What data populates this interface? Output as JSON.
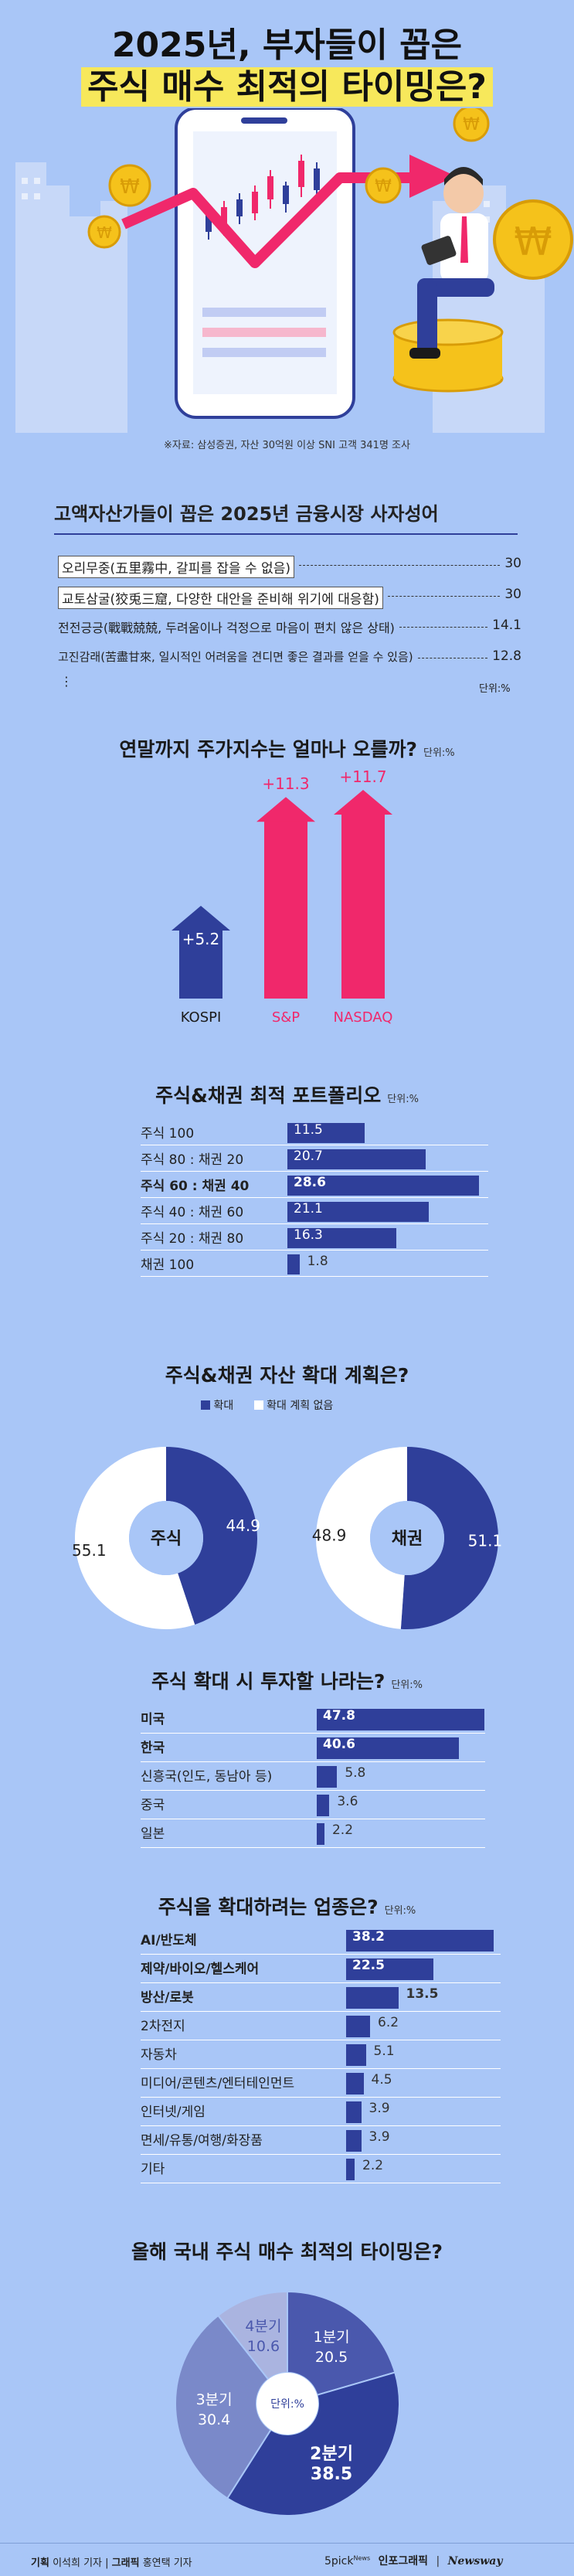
{
  "header": {
    "line1": "2025년, 부자들이 꼽은",
    "line2": "주식 매수 최적의 타이밍은?",
    "source": "※자료: 삼성증권, 자산 30억원 이상 SNI 고객 341명 조사"
  },
  "idioms": {
    "title": "고액자산가들이 꼽은 2025년 금융시장 사자성어",
    "unit": "단위:%",
    "ellipsis": "⋮",
    "items": [
      {
        "text": "오리무중(五里霧中, 갈피를 잡을 수 없음)",
        "value": "30",
        "boxed": true
      },
      {
        "text": "교토삼굴(狡兎三窟, 다양한 대안을 준비해 위기에 대응함)",
        "value": "30",
        "boxed": true
      },
      {
        "text": "전전긍긍(戰戰兢兢, 두려움이나 걱정으로 마음이 편치 않은 상태)",
        "value": "14.1",
        "boxed": false
      },
      {
        "text": "고진감래(苦盡甘來, 일시적인 어려움을 견디면 좋은 결과를 얻을 수 있음)",
        "value": "12.8",
        "boxed": false
      }
    ]
  },
  "chart_data": [
    {
      "type": "bar",
      "title": "연말까지 주가지수는 얼마나 오를까?",
      "unit": "단위:%",
      "categories": [
        "KOSPI",
        "S&P",
        "NASDAQ"
      ],
      "values": [
        5.2,
        11.3,
        11.7
      ],
      "labels": [
        "+5.2",
        "+11.3",
        "+11.7"
      ],
      "colors": [
        "#2f3f9a",
        "#f0286b",
        "#f0286b"
      ]
    },
    {
      "type": "bar",
      "orientation": "horizontal",
      "title": "주식&채권 최적 포트폴리오",
      "unit": "단위:%",
      "categories": [
        "주식 100",
        "주식 80 : 채권 20",
        "주식 60 : 채권 40",
        "주식 40 : 채권 60",
        "주식 20 : 채권 80",
        "채권 100"
      ],
      "values": [
        11.5,
        20.7,
        28.6,
        21.1,
        16.3,
        1.8
      ],
      "bold_index": 2,
      "xlim": [
        0,
        30
      ]
    },
    {
      "type": "pie",
      "title": "주식&채권 자산 확대 계획은?",
      "legend": [
        "확대",
        "확대 계획 없음"
      ],
      "colors": [
        "#2f3f9a",
        "#ffffff"
      ],
      "donuts": [
        {
          "name": "주식",
          "values": [
            44.9,
            55.1
          ]
        },
        {
          "name": "채권",
          "values": [
            51.1,
            48.9
          ]
        }
      ]
    },
    {
      "type": "bar",
      "orientation": "horizontal",
      "title": "주식 확대 시 투자할 나라는?",
      "unit": "단위:%",
      "categories": [
        "미국",
        "한국",
        "신흥국(인도, 동남아 등)",
        "중국",
        "일본"
      ],
      "values": [
        47.8,
        40.6,
        5.8,
        3.6,
        2.2
      ],
      "bold_count": 2,
      "xlim": [
        0,
        48
      ]
    },
    {
      "type": "bar",
      "orientation": "horizontal",
      "title": "주식을 확대하려는 업종은?",
      "unit": "단위:%",
      "categories": [
        "AI/반도체",
        "제약/바이오/헬스케어",
        "방산/로봇",
        "2차전지",
        "자동차",
        "미디어/콘텐츠/엔터테인먼트",
        "인터넷/게임",
        "면세/유통/여행/화장품",
        "기타"
      ],
      "values": [
        38.2,
        22.5,
        13.5,
        6.2,
        5.1,
        4.5,
        3.9,
        3.9,
        2.2
      ],
      "bold_count": 3,
      "xlim": [
        0,
        40
      ]
    },
    {
      "type": "pie",
      "title": "올해 국내 주식 매수 최적의 타이밍은?",
      "center_label": "단위:%",
      "categories": [
        "1분기",
        "2분기",
        "3분기",
        "4분기"
      ],
      "values": [
        20.5,
        38.5,
        30.4,
        10.6
      ],
      "colors": [
        "#4a58ad",
        "#2f3f9a",
        "#7a89c9",
        "#aab4e0"
      ]
    }
  ],
  "footer": {
    "credit_label1": "기획",
    "credit_name1": "이석희 기자",
    "credit_sep": "|",
    "credit_label2": "그래픽",
    "credit_name2": "홍연택 기자",
    "brand1": "5pick",
    "brand1_sub": "News",
    "brand2": "인포그래픽",
    "brand3": "Newsway"
  }
}
